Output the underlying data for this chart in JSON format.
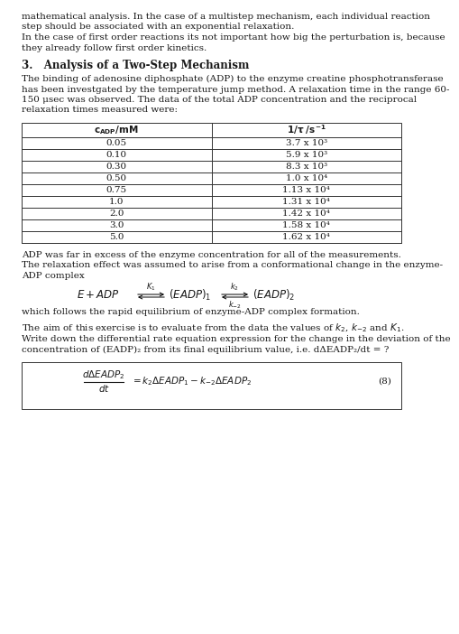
{
  "intro_text": [
    "mathematical analysis. In the case of a multistep mechanism, each individual reaction",
    "step should be associated with an exponential relaxation.",
    "In the case of first order reactions its not important how big the perturbation is, because",
    "they already follow first order kinetics."
  ],
  "section_title": "3.   Analysis of a Two-Step Mechanism",
  "para1": [
    "The binding of adenosine diphosphate (ADP) to the enzyme creatine phosphotransferase",
    "has been investgated by the temperature jump method. A relaxation time in the range 60-",
    "150 μsec was observed. The data of the total ADP concentration and the reciprocal",
    "relaxation times measured were:"
  ],
  "table_data": [
    [
      "0.05",
      "3.7 x 10³"
    ],
    [
      "0.10",
      "5.9 x 10³"
    ],
    [
      "0.30",
      "8.3 x 10³"
    ],
    [
      "0.50",
      "1.0 x 10⁴"
    ],
    [
      "0.75",
      "1.13 x 10⁴"
    ],
    [
      "1.0",
      "1.31 x 10⁴"
    ],
    [
      "2.0",
      "1.42 x 10⁴"
    ],
    [
      "3.0",
      "1.58 x 10⁴"
    ],
    [
      "5.0",
      "1.62 x 10⁴"
    ]
  ],
  "para2": [
    "ADP was far in excess of the enzyme concentration for all of the measurements.",
    "The relaxation effect was assumed to arise from a conformational change in the enzyme-",
    "ADP complex"
  ],
  "para3": "which follows the rapid equilibrium of enzyme-ADP complex formation.",
  "para4a": "The aim of this exercise is to evaluate from the data the values of κ₂, κ₋₂ and Κ₁.",
  "para4b": [
    "Write down the differential rate equation expression for the change in the deviation of the",
    "concentration of (EADP)₂ from its final equilibrium value, i.e. dΔEADP₂/dt = ?"
  ],
  "eq_label": "(8)",
  "bg_color": "#ffffff",
  "text_color": "#1a1a1a",
  "font_size": 7.5
}
